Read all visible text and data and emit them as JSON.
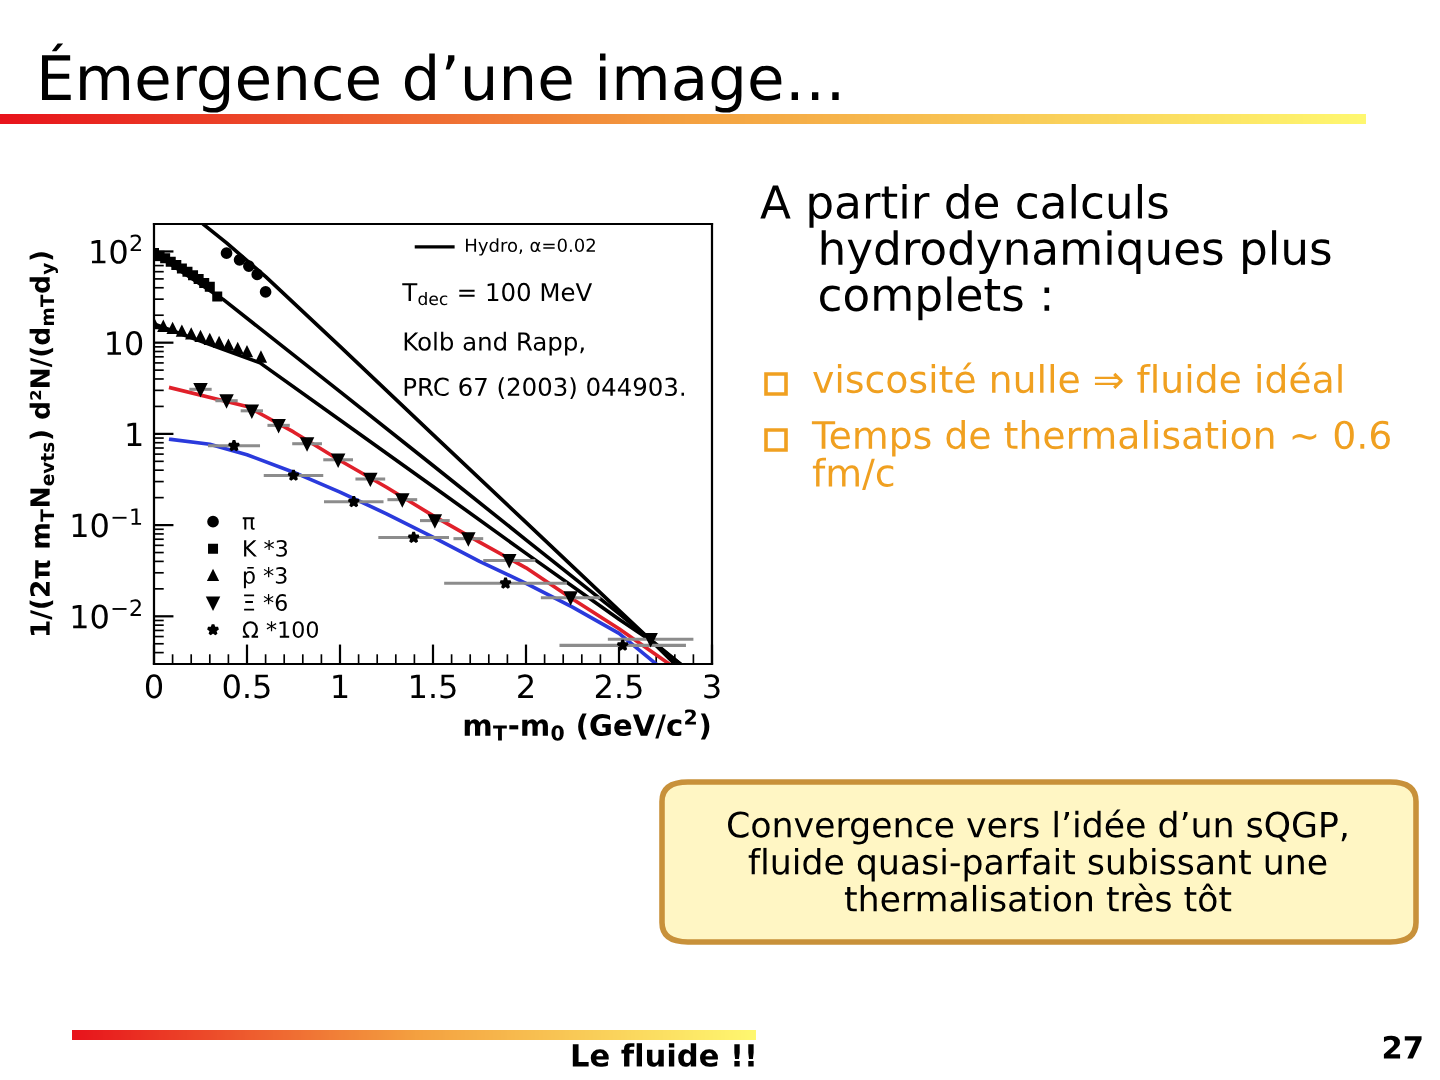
{
  "chart_data": {
    "type": "scatter",
    "title": "Émergence d’une image…",
    "xlabel": "m$_{T}$-m$_{0}$ (GeV/c$^{2}$)",
    "ylabel": "1/(2π m$_{T}$N$_{evts}$) d²N/(d$_{mT}$d$_{y}$)",
    "annotations": [
      "Hydro, α=0.02",
      "T$_{dec}$ = 100 MeV",
      "Kolb and Rapp,",
      "PRC 67 (2003) 044903.",
      "A partir de calculs hydrodynamiques plus complets :",
      "viscosité nulle ⇒ fluide idéal",
      "Temps de thermalisation ~ 0.6 fm/c",
      "Convergence vers l’idée d’un sQGP, fluide quasi-parfait subissant une thermalisation très tôt",
      "Le fluide !!",
      "27"
    ],
    "xlim": [
      0,
      3
    ],
    "xticks": [
      0,
      0.5,
      1,
      1.5,
      2,
      2.5,
      3
    ],
    "ylim": [
      0.003,
      200
    ],
    "yticks": [
      {
        "value": 0.01,
        "label": "10$^{−2}$"
      },
      {
        "value": 0.1,
        "label": "10$^{−1}$"
      },
      1,
      10,
      {
        "value": 100,
        "label": "10$^{2}$"
      }
    ],
    "log": true,
    "legend": "bottom left",
    "series": [
      {
        "name": "π",
        "marker": "circle",
        "color": "#000000",
        "x": [
          0.39,
          0.46,
          0.51,
          0.555,
          0.6
        ],
        "values": [
          96,
          81,
          69,
          56,
          36
        ]
      },
      {
        "name": "K *3",
        "marker": "square",
        "color": "#000000",
        "x": [
          0,
          0.03,
          0.06,
          0.09,
          0.12,
          0.15,
          0.18,
          0.21,
          0.24,
          0.27,
          0.3,
          0.34
        ],
        "values": [
          96,
          90,
          84,
          77,
          71,
          65,
          60,
          55,
          50,
          45,
          41,
          32
        ]
      },
      {
        "name": "p̄ *3",
        "marker": "triangle",
        "color": "#000000",
        "x": [
          0,
          0.05,
          0.1,
          0.15,
          0.2,
          0.25,
          0.3,
          0.35,
          0.4,
          0.45,
          0.5,
          0.575
        ],
        "values": [
          16,
          15,
          14.2,
          13.3,
          12.4,
          11.6,
          10.8,
          10,
          9.3,
          8.6,
          7.9,
          6.9
        ]
      },
      {
        "name": "Ξ *6",
        "marker": "triangle_down",
        "color": "#000000",
        "x": [
          0.25,
          0.39,
          0.526,
          0.67,
          0.823,
          0.99,
          1.163,
          1.335,
          1.51,
          1.69,
          1.91,
          2.24,
          2.67
        ],
        "values": [
          3.08,
          2.31,
          1.79,
          1.24,
          0.78,
          0.52,
          0.32,
          0.19,
          0.112,
          0.071,
          0.041,
          0.016,
          0.0056
        ],
        "xerrors": [
          0.06,
          0.06,
          0.06,
          0.06,
          0.08,
          0.08,
          0.08,
          0.08,
          0.08,
          0.08,
          0.14,
          0.16,
          0.23
        ]
      },
      {
        "name": "Ω *100",
        "marker": "star",
        "color": "#000000",
        "x": [
          0.43,
          0.75,
          1.074,
          1.396,
          1.89,
          2.52
        ],
        "values": [
          0.74,
          0.35,
          0.18,
          0.073,
          0.023,
          0.0048
        ],
        "xerrors": [
          0.14,
          0.16,
          0.16,
          0.19,
          0.33,
          0.34
        ]
      },
      {
        "type": "line",
        "color": "#000000",
        "x": [
          0.27,
          0.39,
          0.6,
          1.0,
          1.5,
          2.0,
          2.5,
          2.65,
          2.8
        ],
        "values": [
          195,
          124,
          53,
          9.1,
          0.98,
          0.107,
          0.0116,
          0.006,
          0.003
        ]
      },
      {
        "type": "line",
        "color": "#000000",
        "x": [
          0,
          0.37,
          1.0,
          1.5,
          2.0,
          2.5,
          2.65,
          2.83
        ],
        "values": [
          96,
          30,
          2.9,
          0.45,
          0.069,
          0.0107,
          0.006,
          0.003
        ]
      },
      {
        "type": "line",
        "color": "#000000",
        "x": [
          0,
          0.57,
          1.0,
          1.5,
          2.0,
          2.5,
          2.65,
          2.83
        ],
        "values": [
          16,
          6,
          1.42,
          0.265,
          0.049,
          0.0093,
          0.0058,
          0.003
        ]
      },
      {
        "type": "line",
        "color": "#e0202a",
        "x": [
          0.09,
          0.5,
          0.75,
          1.0,
          1.25,
          1.5,
          1.75,
          2.0,
          2.25,
          2.5,
          2.77
        ],
        "values": [
          3.2,
          2.0,
          1.05,
          0.51,
          0.26,
          0.127,
          0.065,
          0.034,
          0.0155,
          0.0073,
          0.003
        ]
      },
      {
        "type": "line",
        "color": "#2a3adc",
        "x": [
          0.09,
          0.3,
          0.5,
          0.75,
          1.0,
          1.25,
          1.5,
          1.75,
          2.0,
          2.25,
          2.5,
          2.7
        ],
        "values": [
          0.87,
          0.77,
          0.59,
          0.38,
          0.23,
          0.133,
          0.074,
          0.04,
          0.023,
          0.0126,
          0.0065,
          0.003
        ]
      }
    ]
  }
}
